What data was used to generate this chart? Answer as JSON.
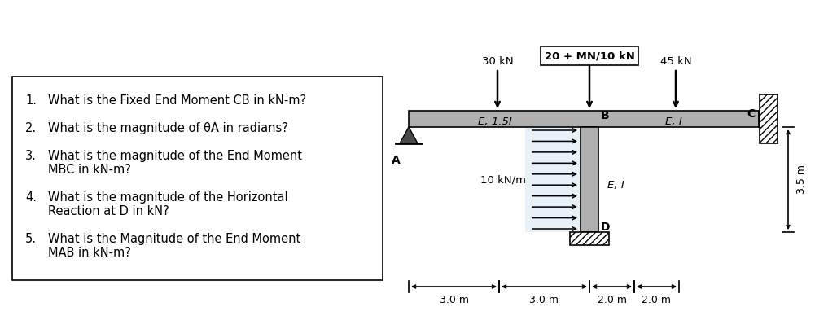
{
  "bg_color": "#ffffff",
  "questions": [
    "What is the Fixed End Moment CB in kN-m?",
    "What is the magnitude of θA in radians?",
    "What is the magnitude of the End Moment",
    "MBC in kN-m?",
    "What is the magnitude of the Horizontal",
    "Reaction at D in kN?",
    "What is the Magnitude of the End Moment",
    "MAB in kN-m?"
  ],
  "title_box": "20 + MN/10 kN",
  "load_30kN_label": "30 kN",
  "load_45kN_label": "45 kN",
  "dist_load_label": "10 kN/m",
  "label_EI_AB": "E, 1.5I",
  "label_EI_BC": "E, I",
  "label_EI_BD": "E, I",
  "label_A": "A",
  "label_B": "B",
  "label_C": "C",
  "label_D": "D",
  "dim_3_0_1": "3.0 m",
  "dim_3_0_2": "3.0 m",
  "dim_2_0_1": "2.0 m",
  "dim_2_0_2": "2.0 m",
  "dim_3_5": "3.5 m",
  "beam_gray": "#b0b0b0",
  "col_gray": "#b0b0b0"
}
